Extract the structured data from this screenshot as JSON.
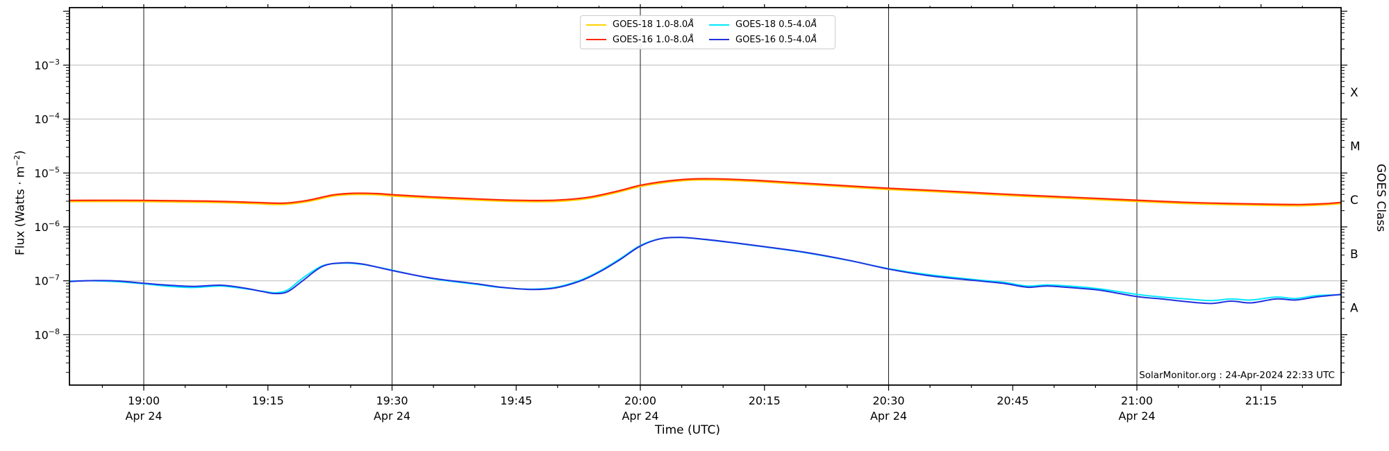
{
  "axes": {
    "xlabel": "Time (UTC)",
    "ylabel_left_parts": {
      "pre": "Flux (Watts · m",
      "sup_exp": "−2",
      "post": ")"
    },
    "ylabel_right": "GOES Class",
    "annotation": "SolarMonitor.org : 24-Apr-2024 22:33 UTC"
  },
  "legend": {
    "items": [
      {
        "label": "GOES-18 1.0-8.0",
        "angstrom": "Å",
        "color": "#ffd300"
      },
      {
        "label": "GOES-16 1.0-8.0",
        "angstrom": "Å",
        "color": "#ff2800"
      },
      {
        "label": "GOES-18 0.5-4.0",
        "angstrom": "Å",
        "color": "#00e8ff"
      },
      {
        "label": "GOES-16 0.5-4.0",
        "angstrom": "Å",
        "color": "#2030dd"
      }
    ]
  },
  "chart_data": {
    "type": "line",
    "title": "",
    "xlabel": "Time (UTC)",
    "ylabel": "Flux (Watts · m⁻²)",
    "ylabel_right": "GOES Class",
    "x_unit": "decimal_hours_UTC_Apr_24_2024",
    "x_range_hours": [
      18.85,
      21.411
    ],
    "y_scale": "log",
    "y_range_log10": [
      -8.93,
      -1.93
    ],
    "x_ticks": [
      {
        "t": 19.0,
        "label": "19:00",
        "date": "Apr 24"
      },
      {
        "t": 19.25,
        "label": "19:15"
      },
      {
        "t": 19.5,
        "label": "19:30",
        "date": "Apr 24"
      },
      {
        "t": 19.75,
        "label": "19:45"
      },
      {
        "t": 20.0,
        "label": "20:00",
        "date": "Apr 24"
      },
      {
        "t": 20.25,
        "label": "20:15"
      },
      {
        "t": 20.5,
        "label": "20:30",
        "date": "Apr 24"
      },
      {
        "t": 20.75,
        "label": "20:45"
      },
      {
        "t": 21.0,
        "label": "21:00",
        "date": "Apr 24"
      },
      {
        "t": 21.25,
        "label": "21:15"
      }
    ],
    "x_gridline_times": [
      19.0,
      19.5,
      20.0,
      20.5,
      21.0
    ],
    "y_labeled_decades": [
      -3,
      -4,
      -5,
      -6,
      -7,
      -8
    ],
    "goes_class_labels": [
      {
        "label": "X",
        "log10_center": -3.5
      },
      {
        "label": "M",
        "log10_center": -4.5
      },
      {
        "label": "C",
        "log10_center": -5.5
      },
      {
        "label": "B",
        "log10_center": -6.5
      },
      {
        "label": "A",
        "log10_center": -7.5
      }
    ],
    "annotation": "SolarMonitor.org : 24-Apr-2024 22:33 UTC",
    "legend_position": "upper center",
    "grid": true,
    "series": [
      {
        "name": "GOES-18 1.0-8.0Å",
        "slug": "goes-18-long",
        "color": "#ffd300",
        "width": 2.2,
        "points": [
          [
            18.85,
            2.95e-06
          ],
          [
            19.0,
            2.95e-06
          ],
          [
            19.13,
            2.85e-06
          ],
          [
            19.22,
            2.71e-06
          ],
          [
            19.28,
            2.61e-06
          ],
          [
            19.33,
            2.95e-06
          ],
          [
            19.38,
            3.71e-06
          ],
          [
            19.42,
            3.99e-06
          ],
          [
            19.47,
            3.94e-06
          ],
          [
            19.5,
            3.75e-06
          ],
          [
            19.58,
            3.42e-06
          ],
          [
            19.67,
            3.14e-06
          ],
          [
            19.73,
            2.99e-06
          ],
          [
            19.8,
            2.93e-06
          ],
          [
            19.85,
            3.04e-06
          ],
          [
            19.9,
            3.42e-06
          ],
          [
            19.95,
            4.28e-06
          ],
          [
            20.0,
            5.61e-06
          ],
          [
            20.05,
            6.65e-06
          ],
          [
            20.1,
            7.32e-06
          ],
          [
            20.15,
            7.41e-06
          ],
          [
            20.22,
            7.03e-06
          ],
          [
            20.3,
            6.37e-06
          ],
          [
            20.4,
            5.61e-06
          ],
          [
            20.5,
            4.94e-06
          ],
          [
            20.6,
            4.47e-06
          ],
          [
            20.7,
            3.99e-06
          ],
          [
            20.78,
            3.66e-06
          ],
          [
            20.88,
            3.33e-06
          ],
          [
            21.0,
            2.96e-06
          ],
          [
            21.1,
            2.71e-06
          ],
          [
            21.2,
            2.57e-06
          ],
          [
            21.28,
            2.49e-06
          ],
          [
            21.33,
            2.47e-06
          ],
          [
            21.38,
            2.57e-06
          ],
          [
            21.411,
            2.71e-06
          ]
        ]
      },
      {
        "name": "GOES-16 1.0-8.0Å",
        "slug": "goes-16-long",
        "color": "#ff2800",
        "width": 2.2,
        "points": [
          [
            18.85,
            3.1e-06
          ],
          [
            19.0,
            3.1e-06
          ],
          [
            19.13,
            3e-06
          ],
          [
            19.22,
            2.85e-06
          ],
          [
            19.28,
            2.75e-06
          ],
          [
            19.33,
            3.1e-06
          ],
          [
            19.38,
            3.9e-06
          ],
          [
            19.42,
            4.2e-06
          ],
          [
            19.47,
            4.15e-06
          ],
          [
            19.5,
            3.95e-06
          ],
          [
            19.58,
            3.6e-06
          ],
          [
            19.67,
            3.3e-06
          ],
          [
            19.73,
            3.15e-06
          ],
          [
            19.8,
            3.08e-06
          ],
          [
            19.85,
            3.2e-06
          ],
          [
            19.9,
            3.6e-06
          ],
          [
            19.95,
            4.5e-06
          ],
          [
            20.0,
            5.9e-06
          ],
          [
            20.05,
            7e-06
          ],
          [
            20.1,
            7.7e-06
          ],
          [
            20.15,
            7.8e-06
          ],
          [
            20.22,
            7.4e-06
          ],
          [
            20.3,
            6.7e-06
          ],
          [
            20.4,
            5.9e-06
          ],
          [
            20.5,
            5.2e-06
          ],
          [
            20.6,
            4.7e-06
          ],
          [
            20.7,
            4.2e-06
          ],
          [
            20.78,
            3.85e-06
          ],
          [
            20.88,
            3.5e-06
          ],
          [
            21.0,
            3.12e-06
          ],
          [
            21.1,
            2.85e-06
          ],
          [
            21.2,
            2.7e-06
          ],
          [
            21.28,
            2.62e-06
          ],
          [
            21.33,
            2.6e-06
          ],
          [
            21.38,
            2.7e-06
          ],
          [
            21.411,
            2.85e-06
          ]
        ]
      },
      {
        "name": "GOES-18 0.5-4.0Å",
        "slug": "goes-18-short",
        "color": "#00e8ff",
        "width": 2.0,
        "points": [
          [
            18.85,
            9.9e-08
          ],
          [
            18.9,
            1e-07
          ],
          [
            18.95,
            9.6e-08
          ],
          [
            19.0,
            8.8e-08
          ],
          [
            19.05,
            7.9e-08
          ],
          [
            19.1,
            7.5e-08
          ],
          [
            19.155,
            8e-08
          ],
          [
            19.2,
            7.2e-08
          ],
          [
            19.24,
            6.4e-08
          ],
          [
            19.265,
            6e-08
          ],
          [
            19.29,
            6.8e-08
          ],
          [
            19.32,
            1.12e-07
          ],
          [
            19.36,
            1.9e-07
          ],
          [
            19.4,
            2.12e-07
          ],
          [
            19.44,
            2.02e-07
          ],
          [
            19.5,
            1.58e-07
          ],
          [
            19.58,
            1.1e-07
          ],
          [
            19.67,
            8.6e-08
          ],
          [
            19.72,
            7.5e-08
          ],
          [
            19.78,
            7e-08
          ],
          [
            19.83,
            7.6e-08
          ],
          [
            19.88,
            1.03e-07
          ],
          [
            19.92,
            1.55e-07
          ],
          [
            19.96,
            2.6e-07
          ],
          [
            20.0,
            4.5e-07
          ],
          [
            20.04,
            6.05e-07
          ],
          [
            20.08,
            6.35e-07
          ],
          [
            20.12,
            5.95e-07
          ],
          [
            20.18,
            5.15e-07
          ],
          [
            20.25,
            4.25e-07
          ],
          [
            20.33,
            3.35e-07
          ],
          [
            20.42,
            2.38e-07
          ],
          [
            20.5,
            1.68e-07
          ],
          [
            20.58,
            1.3e-07
          ],
          [
            20.67,
            1.06e-07
          ],
          [
            20.73,
            9.4e-08
          ],
          [
            20.78,
            8e-08
          ],
          [
            20.82,
            8.4e-08
          ],
          [
            20.88,
            7.8e-08
          ],
          [
            20.93,
            7e-08
          ],
          [
            21.0,
            5.6e-08
          ],
          [
            21.05,
            5e-08
          ],
          [
            21.1,
            4.6e-08
          ],
          [
            21.15,
            4.3e-08
          ],
          [
            21.19,
            4.6e-08
          ],
          [
            21.23,
            4.4e-08
          ],
          [
            21.28,
            5e-08
          ],
          [
            21.32,
            4.7e-08
          ],
          [
            21.36,
            5.3e-08
          ],
          [
            21.411,
            5.5e-08
          ]
        ]
      },
      {
        "name": "GOES-16 0.5-4.0Å",
        "slug": "goes-16-short",
        "color": "#2030dd",
        "width": 2.0,
        "points": [
          [
            18.85,
            9.7e-08
          ],
          [
            18.9,
            1.01e-07
          ],
          [
            18.95,
            9.9e-08
          ],
          [
            19.0,
            9e-08
          ],
          [
            19.05,
            8.3e-08
          ],
          [
            19.1,
            7.9e-08
          ],
          [
            19.155,
            8.3e-08
          ],
          [
            19.2,
            7.4e-08
          ],
          [
            19.24,
            6.3e-08
          ],
          [
            19.265,
            5.8e-08
          ],
          [
            19.29,
            6.3e-08
          ],
          [
            19.32,
            1e-07
          ],
          [
            19.36,
            1.85e-07
          ],
          [
            19.4,
            2.15e-07
          ],
          [
            19.44,
            2.05e-07
          ],
          [
            19.5,
            1.55e-07
          ],
          [
            19.58,
            1.12e-07
          ],
          [
            19.67,
            8.8e-08
          ],
          [
            19.72,
            7.6e-08
          ],
          [
            19.78,
            6.9e-08
          ],
          [
            19.83,
            7.4e-08
          ],
          [
            19.88,
            1e-07
          ],
          [
            19.92,
            1.5e-07
          ],
          [
            19.96,
            2.5e-07
          ],
          [
            20.0,
            4.4e-07
          ],
          [
            20.04,
            6e-07
          ],
          [
            20.08,
            6.4e-07
          ],
          [
            20.12,
            6e-07
          ],
          [
            20.18,
            5.2e-07
          ],
          [
            20.25,
            4.3e-07
          ],
          [
            20.33,
            3.4e-07
          ],
          [
            20.42,
            2.4e-07
          ],
          [
            20.5,
            1.65e-07
          ],
          [
            20.58,
            1.25e-07
          ],
          [
            20.67,
            1.02e-07
          ],
          [
            20.73,
            9e-08
          ],
          [
            20.78,
            7.6e-08
          ],
          [
            20.82,
            8e-08
          ],
          [
            20.88,
            7.3e-08
          ],
          [
            20.93,
            6.6e-08
          ],
          [
            21.0,
            5.1e-08
          ],
          [
            21.05,
            4.6e-08
          ],
          [
            21.1,
            4.1e-08
          ],
          [
            21.15,
            3.8e-08
          ],
          [
            21.19,
            4.2e-08
          ],
          [
            21.23,
            3.9e-08
          ],
          [
            21.28,
            4.6e-08
          ],
          [
            21.32,
            4.4e-08
          ],
          [
            21.36,
            5e-08
          ],
          [
            21.411,
            5.6e-08
          ]
        ]
      }
    ]
  }
}
